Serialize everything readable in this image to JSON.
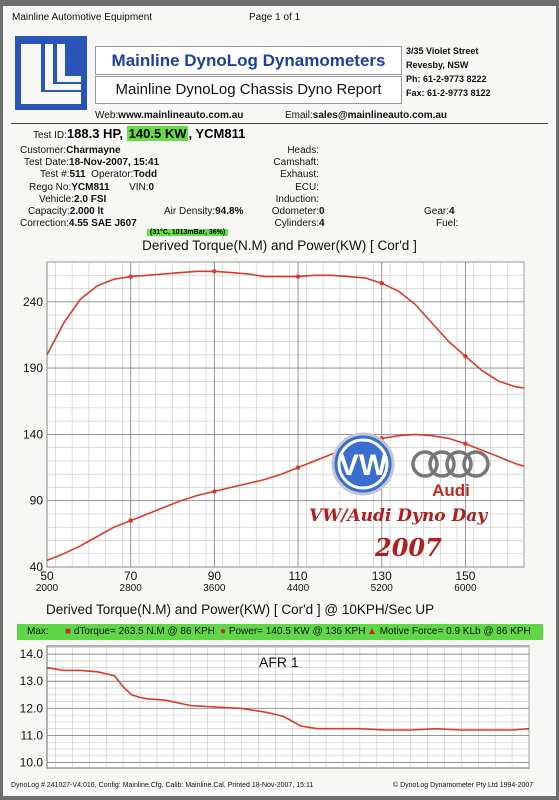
{
  "header": {
    "company": "Mainline Automotive Equipment",
    "page": "Page 1 of 1",
    "title_main": "Mainline DynoLog Dynamometers",
    "title_sub": "Mainline DynoLog Chassis Dyno Report",
    "address": [
      "3/35 Violet Street",
      "Revesby, NSW",
      "Ph: 61-2-9773 8222",
      "Fax: 61-2-9773 8122"
    ],
    "web_label": "Web:",
    "web": "www.mainlineauto.com.au",
    "email_label": "Email:",
    "email": "sales@mainlineauto.com.au"
  },
  "test": {
    "id_label": "Test ID:",
    "hp": "188.3 HP,",
    "kw": "140.5 KW",
    "id_code": ", YCM811",
    "customer_label": "Customer:",
    "customer": "Charmayne",
    "date_label": "Test Date:",
    "date": "18-Nov-2007, 15:41",
    "num_label": "Test #:",
    "num": "511",
    "operator_label": "Operator:",
    "operator": "Todd",
    "rego_label": "Rego No:",
    "rego": "YCM811",
    "vin_label": "VIN:",
    "vin": "0",
    "vehicle_label": "Vehicle:",
    "vehicle": "2.0 FSI",
    "capacity_label": "Capacity:",
    "capacity": "2.000 lt",
    "air_label": "Air Density:",
    "air": "94.8%",
    "correction_label": "Correction:",
    "correction": "4.55 SAE J607",
    "conditions": "(31°C, 1013mBar, 36%)",
    "heads_label": "Heads:",
    "camshaft_label": "Camshaft:",
    "exhaust_label": "Exhaust:",
    "ecu_label": "ECU:",
    "induction_label": "Induction:",
    "odometer_label": "Odometer:",
    "odometer": "0",
    "cylinders_label": "Cylinders:",
    "cylinders": "4",
    "fuel_label": "Fuel:",
    "gear_label": "Gear:",
    "gear": "4"
  },
  "max_bar": {
    "max_label": "Max:",
    "torque": "dTorque= 263.5 N.M @ 86 KPH",
    "power": "Power= 140.5 KW @ 136 KPH",
    "motive": "Motive Force= 0.9 KLb @ 86 KPH"
  },
  "overlay": {
    "vw": "VW",
    "audi": "Audi",
    "dyno_day": "VW/Audi Dyno Day",
    "year": "2007"
  },
  "footer": {
    "left": "DynoLog # 241027-V4.016, Config: Mainline.Cfg, Calib: Mainline.Cal, Printed 18-Nov-2007, 15:11",
    "right": "© DynoLog Dynamometer Pty Ltd 1994-2007"
  },
  "chart_data": [
    {
      "type": "line",
      "title": "Derived Torque(N.M) and Power(KW)    [ Cor'd ]",
      "x_ticks": [
        50,
        70,
        90,
        110,
        130,
        150
      ],
      "x_ticks_secondary": [
        "2000",
        "2800",
        "3600",
        "4400",
        "5200",
        "6000"
      ],
      "y_ticks": [
        40,
        90,
        140,
        190,
        240
      ],
      "xlim": [
        50,
        164
      ],
      "ylim": [
        40,
        270
      ],
      "grid": true,
      "series": [
        {
          "color": "#d93a2b",
          "x": [
            50,
            54,
            58,
            62,
            66,
            70,
            74,
            78,
            82,
            86,
            90,
            94,
            98,
            102,
            106,
            110,
            114,
            118,
            122,
            126,
            130,
            134,
            138,
            142,
            146,
            150,
            154,
            158,
            162,
            164
          ],
          "values": [
            200,
            224,
            242,
            252,
            257,
            259,
            260,
            261,
            262,
            263,
            263,
            262,
            261,
            259,
            259,
            259,
            260,
            260,
            259,
            258,
            254,
            248,
            238,
            224,
            210,
            199,
            188,
            180,
            176,
            175
          ]
        },
        {
          "color": "#d93a2b",
          "x": [
            50,
            54,
            58,
            62,
            66,
            70,
            74,
            78,
            82,
            86,
            90,
            94,
            98,
            102,
            106,
            110,
            114,
            118,
            122,
            126,
            130,
            134,
            138,
            142,
            146,
            150,
            154,
            158,
            162,
            164
          ],
          "values": [
            45,
            50,
            56,
            63,
            70,
            75,
            80,
            85,
            90,
            94,
            97,
            100,
            103,
            106,
            110,
            115,
            120,
            125,
            130,
            134,
            137,
            139,
            140,
            139,
            137,
            133,
            128,
            123,
            118,
            116
          ]
        }
      ]
    },
    {
      "type": "line",
      "title": "Derived Torque(N.M) and Power(KW)    [ Cor'd ] @ 10KPH/Sec UP",
      "annotation": "AFR  1",
      "x_ticks": [],
      "y_ticks": [
        10.0,
        11.0,
        12.0,
        13.0,
        14.0
      ],
      "xlim": [
        50,
        164
      ],
      "ylim": [
        9.8,
        14.3
      ],
      "grid": true,
      "series": [
        {
          "color": "#d93a2b",
          "x": [
            50,
            54,
            58,
            62,
            66,
            68,
            70,
            72,
            74,
            78,
            84,
            90,
            96,
            102,
            106,
            110,
            114,
            118,
            124,
            130,
            136,
            142,
            148,
            154,
            160,
            164
          ],
          "values": [
            13.5,
            13.4,
            13.4,
            13.35,
            13.2,
            12.8,
            12.5,
            12.4,
            12.35,
            12.3,
            12.1,
            12.05,
            12.0,
            11.85,
            11.7,
            11.35,
            11.25,
            11.25,
            11.25,
            11.2,
            11.2,
            11.25,
            11.2,
            11.2,
            11.2,
            11.25
          ]
        }
      ]
    }
  ]
}
